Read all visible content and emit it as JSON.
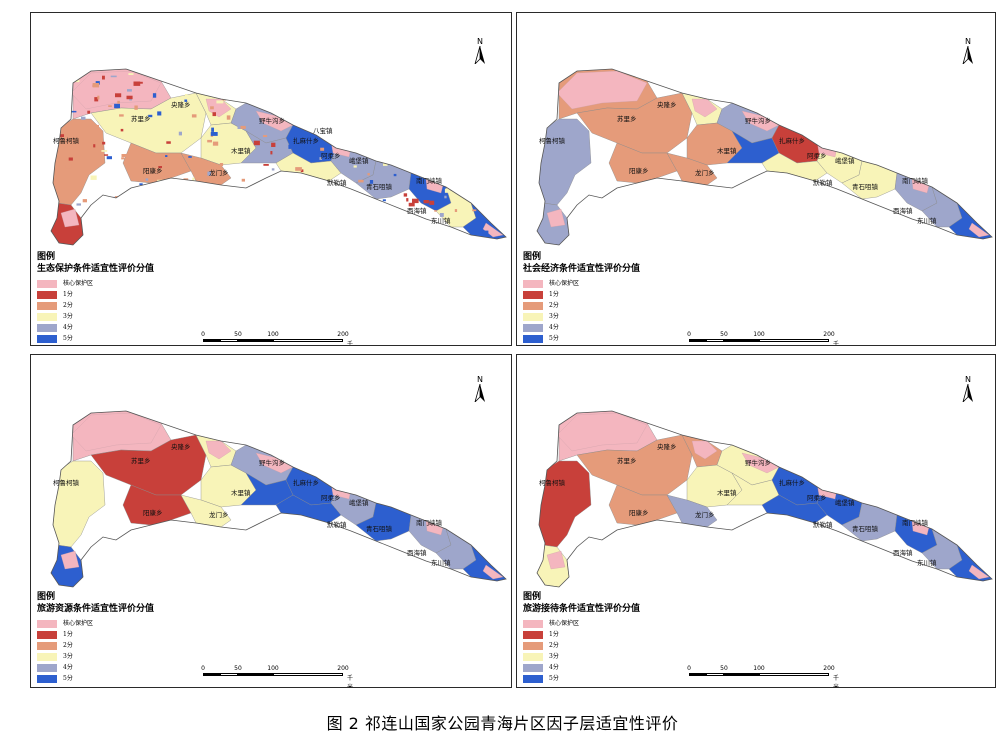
{
  "legend": {
    "header": "图例",
    "items": [
      {
        "label": "核心保护区",
        "color": "#f4b6bf"
      },
      {
        "label": "1分",
        "color": "#c8403a"
      },
      {
        "label": "2分",
        "color": "#e59b7a"
      },
      {
        "label": "3分",
        "color": "#f8f4b8"
      },
      {
        "label": "4分",
        "color": "#9ea6cb"
      },
      {
        "label": "5分",
        "color": "#2d5fcf"
      }
    ]
  },
  "scale": {
    "ticks": [
      "0",
      "50",
      "100",
      "200"
    ],
    "unit": "千米"
  },
  "north_label": "N",
  "panels": [
    {
      "title": "生态保护条件适宜性评价分值",
      "places": [
        "央隆乡",
        "苏里乡",
        "野牛沟乡",
        "柯鲁柯镇",
        "木里镇",
        "阳康乡",
        "龙门乡",
        "扎麻什乡",
        "阿柔乡",
        "八宝镇",
        "峨堡镇",
        "默勒镇",
        "青石咀镇",
        "南门峡镇",
        "西海镇",
        "东川镇"
      ]
    },
    {
      "title": "社会经济条件适宜性评价分值",
      "places": [
        "央隆乡",
        "苏里乡",
        "野牛沟乡",
        "柯鲁柯镇",
        "木里镇",
        "阳康乡",
        "龙门乡",
        "扎麻什乡",
        "阿柔乡",
        "峨堡镇",
        "默勒镇",
        "青石咀镇",
        "南门峡镇",
        "西海镇",
        "东川镇"
      ]
    },
    {
      "title": "旅游资源条件适宜性评价分值",
      "places": [
        "央隆乡",
        "苏里乡",
        "野牛沟乡",
        "柯鲁柯镇",
        "木里镇",
        "阳康乡",
        "龙门乡",
        "扎麻什乡",
        "阿柔乡",
        "峨堡镇",
        "默勒镇",
        "青石咀镇",
        "南门峡镇",
        "西海镇",
        "东川镇"
      ]
    },
    {
      "title": "旅游接待条件适宜性评价分值",
      "places": [
        "央隆乡",
        "苏里乡",
        "野牛沟乡",
        "柯鲁柯镇",
        "木里镇",
        "阳康乡",
        "龙门乡",
        "扎麻什乡",
        "阿柔乡",
        "峨堡镇",
        "默勒镇",
        "青石咀镇",
        "南门峡镇",
        "西海镇",
        "东川镇"
      ]
    }
  ],
  "caption": "图 2   祁连山国家公园青海片区因子层适宜性评价"
}
